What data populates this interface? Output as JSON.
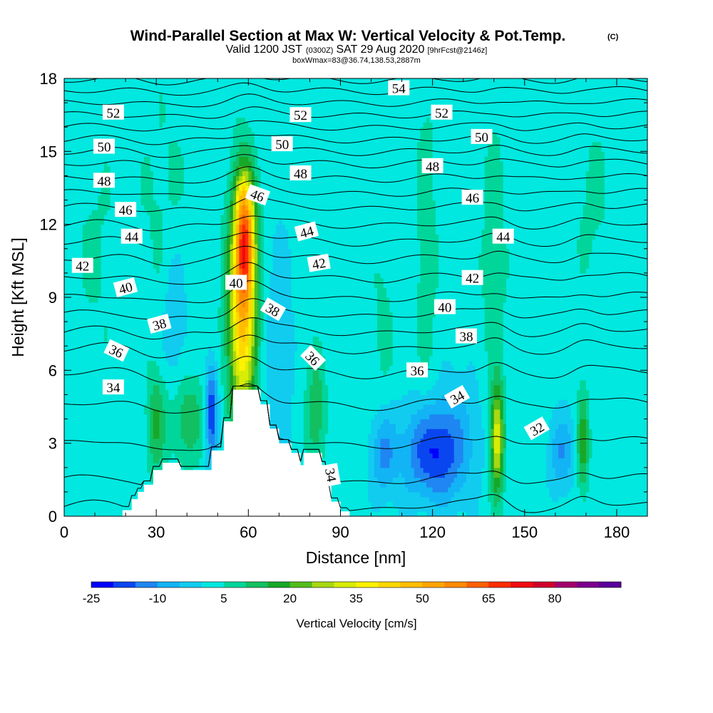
{
  "chart_data": {
    "type": "heatmap",
    "title": "Wind-Parallel Section at Max W: Vertical Velocity & Pot.Temp.",
    "title_mark": "(C)",
    "subtitle_main": "Valid 1200 JST",
    "subtitle_z": "(0300Z)",
    "subtitle_date": "SAT 29 Aug 2020",
    "subtitle_fcst": "[9hrFcst@2146z]",
    "subtitle2": "boxWmax=83@36.74,138.53,2887m",
    "xlabel": "Distance [nm]",
    "ylabel": "Height [Kft MSL]",
    "xlim": [
      0,
      190
    ],
    "ylim": [
      0,
      18
    ],
    "xticks": [
      0,
      30,
      60,
      90,
      120,
      150,
      180
    ],
    "yticks": [
      0,
      3,
      6,
      9,
      12,
      15,
      18
    ],
    "colorbar": {
      "label": "Vertical Velocity [cm/s]",
      "tick_labels": [
        "-25",
        "-10",
        "5",
        "20",
        "35",
        "50",
        "65",
        "80"
      ],
      "levels": [
        -25,
        -20,
        -15,
        -10,
        -5,
        0,
        5,
        10,
        15,
        20,
        25,
        30,
        35,
        40,
        45,
        50,
        55,
        60,
        65,
        70,
        75,
        80,
        85,
        90
      ],
      "colors": [
        "#0000ff",
        "#0a46f0",
        "#1f86f2",
        "#12b4f5",
        "#12ccf0",
        "#00e8e0",
        "#00d69a",
        "#12c062",
        "#18a828",
        "#53bd1c",
        "#a8d810",
        "#d8ec06",
        "#fff200",
        "#ffd800",
        "#ffbe00",
        "#ffa500",
        "#ff8a00",
        "#ff6000",
        "#ff2e00",
        "#f00a10",
        "#d0002a",
        "#a4006c",
        "#7c008c",
        "#5a009a"
      ]
    },
    "field": {
      "background_value": 2,
      "features": [
        {
          "x": 58,
          "y": 8.5,
          "sx": 3.2,
          "sy": 3.3,
          "amp": 44
        },
        {
          "x": 59,
          "y": 11.5,
          "sx": 2.2,
          "sy": 1.7,
          "amp": 42
        },
        {
          "x": 57.5,
          "y": 13.3,
          "sx": 1.4,
          "sy": 0.5,
          "amp": 6
        },
        {
          "x": 141,
          "y": 3.2,
          "sx": 1.5,
          "sy": 1.5,
          "amp": 33
        },
        {
          "x": 169,
          "y": 3.0,
          "sx": 1.4,
          "sy": 1.4,
          "amp": 17
        },
        {
          "x": 82,
          "y": 4.3,
          "sx": 2.2,
          "sy": 1.6,
          "amp": 13
        },
        {
          "x": 40,
          "y": 4.0,
          "sx": 4.0,
          "sy": 1.3,
          "amp": 12
        },
        {
          "x": 30,
          "y": 3.8,
          "sx": 2.2,
          "sy": 1.5,
          "amp": 13
        },
        {
          "x": 120,
          "y": 2.6,
          "sx": 6.5,
          "sy": 1.4,
          "amp": -22
        },
        {
          "x": 104,
          "y": 2.6,
          "sx": 3.0,
          "sy": 1.2,
          "amp": -13
        },
        {
          "x": 48,
          "y": 4.3,
          "sx": 1.4,
          "sy": 1.4,
          "amp": -22
        },
        {
          "x": 162,
          "y": 2.6,
          "sx": 2.8,
          "sy": 1.1,
          "amp": -12
        },
        {
          "x": 36,
          "y": 8.2,
          "sx": 3.0,
          "sy": 2.4,
          "amp": -8
        },
        {
          "x": 70,
          "y": 6.5,
          "sx": 3.0,
          "sy": 3.5,
          "amp": -7
        },
        {
          "x": 130,
          "y": 3.5,
          "sx": 10,
          "sy": 2.0,
          "amp": -5
        },
        {
          "x": 118,
          "y": 10.0,
          "sx": 3.0,
          "sy": 7.5,
          "amp": 5
        },
        {
          "x": 140,
          "y": 9.5,
          "sx": 3.5,
          "sy": 6.5,
          "amp": 5
        },
        {
          "x": 172,
          "y": 13.0,
          "sx": 5.0,
          "sy": 3.0,
          "amp": 4
        },
        {
          "x": 33,
          "y": 12.5,
          "sx": 7.0,
          "sy": 4.0,
          "amp": 4
        },
        {
          "x": 10,
          "y": 11.0,
          "sx": 6.0,
          "sy": 4.0,
          "amp": 3.5
        },
        {
          "x": 104,
          "y": 8.0,
          "sx": 3.0,
          "sy": 3.0,
          "amp": 4
        }
      ]
    },
    "terrain": [
      [
        19,
        0
      ],
      [
        19,
        0.25
      ],
      [
        22,
        0.25
      ],
      [
        22,
        0.7
      ],
      [
        24,
        0.7
      ],
      [
        24,
        1.0
      ],
      [
        26,
        1.0
      ],
      [
        26,
        1.3
      ],
      [
        29,
        1.3
      ],
      [
        29,
        1.9
      ],
      [
        32,
        1.9
      ],
      [
        32,
        2.2
      ],
      [
        38,
        2.2
      ],
      [
        38,
        1.9
      ],
      [
        48,
        1.9
      ],
      [
        48,
        2.7
      ],
      [
        52,
        2.7
      ],
      [
        52,
        3.9
      ],
      [
        55,
        3.9
      ],
      [
        55,
        5.2
      ],
      [
        64,
        5.2
      ],
      [
        64,
        4.6
      ],
      [
        67,
        4.6
      ],
      [
        67,
        3.6
      ],
      [
        70,
        3.6
      ],
      [
        70,
        3.0
      ],
      [
        74,
        3.0
      ],
      [
        74,
        2.6
      ],
      [
        77,
        2.6
      ],
      [
        77,
        2.1
      ],
      [
        78,
        2.1
      ],
      [
        78,
        2.6
      ],
      [
        84,
        2.6
      ],
      [
        84,
        2.1
      ],
      [
        86,
        2.1
      ],
      [
        86,
        1.3
      ],
      [
        87,
        1.3
      ],
      [
        87,
        0.6
      ],
      [
        90,
        0.6
      ],
      [
        90,
        0.2
      ],
      [
        93,
        0.2
      ],
      [
        93,
        0
      ]
    ],
    "contours": {
      "levels": [
        32,
        33,
        34,
        35,
        36,
        37,
        38,
        39,
        40,
        41,
        42,
        43,
        44,
        45,
        46,
        47,
        48,
        49,
        50,
        51,
        52,
        53,
        54,
        55
      ],
      "base_heights": [
        0.4,
        1.5,
        3.0,
        4.6,
        5.9,
        6.9,
        7.6,
        8.3,
        9.0,
        9.8,
        10.6,
        11.3,
        12.0,
        12.7,
        13.3,
        13.9,
        14.5,
        15.0,
        15.5,
        16.0,
        16.5,
        17.0,
        17.5,
        17.95
      ],
      "labels": [
        {
          "value": "52",
          "x": 16,
          "y": 16.6,
          "angle": 0
        },
        {
          "value": "52",
          "x": 77,
          "y": 16.5,
          "angle": 0
        },
        {
          "value": "52",
          "x": 123,
          "y": 16.6,
          "angle": 0
        },
        {
          "value": "54",
          "x": 109,
          "y": 17.6,
          "angle": 0
        },
        {
          "value": "50",
          "x": 13,
          "y": 15.2,
          "angle": 0
        },
        {
          "value": "50",
          "x": 71,
          "y": 15.3,
          "angle": 0
        },
        {
          "value": "50",
          "x": 136,
          "y": 15.6,
          "angle": 0
        },
        {
          "value": "48",
          "x": 13,
          "y": 13.8,
          "angle": 0
        },
        {
          "value": "48",
          "x": 77,
          "y": 14.1,
          "angle": 0
        },
        {
          "value": "48",
          "x": 120,
          "y": 14.4,
          "angle": 0
        },
        {
          "value": "46",
          "x": 20,
          "y": 12.6,
          "angle": 0
        },
        {
          "value": "46",
          "x": 63,
          "y": 13.2,
          "angle": 20
        },
        {
          "value": "46",
          "x": 133,
          "y": 13.1,
          "angle": 0
        },
        {
          "value": "44",
          "x": 22,
          "y": 11.5,
          "angle": 0
        },
        {
          "value": "44",
          "x": 79,
          "y": 11.7,
          "angle": -15
        },
        {
          "value": "44",
          "x": 143,
          "y": 11.5,
          "angle": 0
        },
        {
          "value": "42",
          "x": 6,
          "y": 10.3,
          "angle": 0
        },
        {
          "value": "42",
          "x": 83,
          "y": 10.4,
          "angle": -10
        },
        {
          "value": "42",
          "x": 133,
          "y": 9.8,
          "angle": 0
        },
        {
          "value": "40",
          "x": 20,
          "y": 9.4,
          "angle": -15
        },
        {
          "value": "40",
          "x": 56,
          "y": 9.6,
          "angle": 0
        },
        {
          "value": "40",
          "x": 124,
          "y": 8.6,
          "angle": 0
        },
        {
          "value": "38",
          "x": 31,
          "y": 7.9,
          "angle": -15
        },
        {
          "value": "38",
          "x": 68,
          "y": 8.5,
          "angle": 30
        },
        {
          "value": "38",
          "x": 131,
          "y": 7.4,
          "angle": 0
        },
        {
          "value": "36",
          "x": 17,
          "y": 6.8,
          "angle": 25
        },
        {
          "value": "36",
          "x": 81,
          "y": 6.5,
          "angle": 45
        },
        {
          "value": "36",
          "x": 115,
          "y": 6.0,
          "angle": 0
        },
        {
          "value": "34",
          "x": 16,
          "y": 5.3,
          "angle": 0
        },
        {
          "value": "34",
          "x": 128,
          "y": 4.9,
          "angle": -30
        },
        {
          "value": "34",
          "x": 87,
          "y": 1.7,
          "angle": 80
        },
        {
          "value": "32",
          "x": 154,
          "y": 3.6,
          "angle": -30
        }
      ]
    }
  }
}
